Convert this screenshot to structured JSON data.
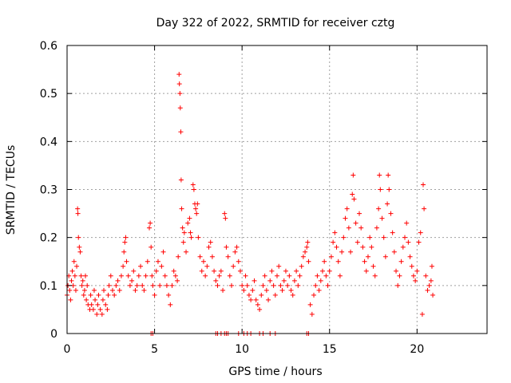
{
  "chart_data": {
    "type": "scatter",
    "title": "Day 322 of 2022, SRMTID for receiver cztg",
    "xlabel": "GPS time / hours",
    "ylabel": "SRMTID / TECUs",
    "xlim": [
      0,
      24
    ],
    "ylim": [
      0,
      0.6
    ],
    "xticks": [
      0,
      5,
      10,
      15,
      20
    ],
    "xtick_labels": [
      "0",
      "5",
      "10",
      "15",
      "20"
    ],
    "yticks": [
      0,
      0.1,
      0.2,
      0.3,
      0.4,
      0.5,
      0.6
    ],
    "ytick_labels": [
      "0",
      "0.1",
      "0.2",
      "0.3",
      "0.4",
      "0.5",
      "0.6"
    ],
    "grid": true,
    "marker": "+",
    "series": [
      {
        "name": "SRMTID",
        "color": "#ff0000",
        "points": [
          [
            0.0,
            0.08
          ],
          [
            0.05,
            0.1
          ],
          [
            0.1,
            0.12
          ],
          [
            0.15,
            0.09
          ],
          [
            0.2,
            0.07
          ],
          [
            0.25,
            0.11
          ],
          [
            0.3,
            0.13
          ],
          [
            0.35,
            0.1
          ],
          [
            0.4,
            0.15
          ],
          [
            0.45,
            0.12
          ],
          [
            0.5,
            0.09
          ],
          [
            0.55,
            0.14
          ],
          [
            0.6,
            0.26
          ],
          [
            0.62,
            0.25
          ],
          [
            0.65,
            0.2
          ],
          [
            0.7,
            0.18
          ],
          [
            0.75,
            0.17
          ],
          [
            0.8,
            0.12
          ],
          [
            0.85,
            0.1
          ],
          [
            0.9,
            0.11
          ],
          [
            0.95,
            0.08
          ],
          [
            1.0,
            0.09
          ],
          [
            1.05,
            0.12
          ],
          [
            1.1,
            0.07
          ],
          [
            1.15,
            0.1
          ],
          [
            1.2,
            0.06
          ],
          [
            1.3,
            0.05
          ],
          [
            1.35,
            0.08
          ],
          [
            1.4,
            0.06
          ],
          [
            1.5,
            0.05
          ],
          [
            1.55,
            0.09
          ],
          [
            1.6,
            0.07
          ],
          [
            1.7,
            0.04
          ],
          [
            1.75,
            0.06
          ],
          [
            1.8,
            0.08
          ],
          [
            1.9,
            0.05
          ],
          [
            2.0,
            0.04
          ],
          [
            2.05,
            0.07
          ],
          [
            2.1,
            0.09
          ],
          [
            2.2,
            0.06
          ],
          [
            2.3,
            0.05
          ],
          [
            2.35,
            0.08
          ],
          [
            2.4,
            0.1
          ],
          [
            2.5,
            0.12
          ],
          [
            2.6,
            0.09
          ],
          [
            2.7,
            0.08
          ],
          [
            2.8,
            0.1
          ],
          [
            2.9,
            0.11
          ],
          [
            3.0,
            0.09
          ],
          [
            3.1,
            0.12
          ],
          [
            3.2,
            0.14
          ],
          [
            3.25,
            0.17
          ],
          [
            3.3,
            0.19
          ],
          [
            3.35,
            0.2
          ],
          [
            3.4,
            0.15
          ],
          [
            3.5,
            0.12
          ],
          [
            3.6,
            0.1
          ],
          [
            3.7,
            0.11
          ],
          [
            3.8,
            0.13
          ],
          [
            3.9,
            0.09
          ],
          [
            4.0,
            0.1
          ],
          [
            4.1,
            0.12
          ],
          [
            4.2,
            0.14
          ],
          [
            4.3,
            0.1
          ],
          [
            4.4,
            0.09
          ],
          [
            4.5,
            0.12
          ],
          [
            4.6,
            0.15
          ],
          [
            4.7,
            0.22
          ],
          [
            4.75,
            0.23
          ],
          [
            4.8,
            0.18
          ],
          [
            4.85,
            0.12
          ],
          [
            4.9,
            0.1
          ],
          [
            5.0,
            0.08
          ],
          [
            5.1,
            0.13
          ],
          [
            5.2,
            0.15
          ],
          [
            5.3,
            0.1
          ],
          [
            5.4,
            0.14
          ],
          [
            5.5,
            0.17
          ],
          [
            5.6,
            0.12
          ],
          [
            5.7,
            0.1
          ],
          [
            5.8,
            0.08
          ],
          [
            5.9,
            0.06
          ],
          [
            6.0,
            0.1
          ],
          [
            6.1,
            0.13
          ],
          [
            6.2,
            0.12
          ],
          [
            6.3,
            0.11
          ],
          [
            6.35,
            0.16
          ],
          [
            6.4,
            0.54
          ],
          [
            6.42,
            0.52
          ],
          [
            6.45,
            0.5
          ],
          [
            6.47,
            0.47
          ],
          [
            6.5,
            0.42
          ],
          [
            6.52,
            0.32
          ],
          [
            6.55,
            0.26
          ],
          [
            6.6,
            0.22
          ],
          [
            6.65,
            0.19
          ],
          [
            6.7,
            0.21
          ],
          [
            6.8,
            0.17
          ],
          [
            6.9,
            0.23
          ],
          [
            7.0,
            0.24
          ],
          [
            7.05,
            0.21
          ],
          [
            7.1,
            0.2
          ],
          [
            7.2,
            0.31
          ],
          [
            7.25,
            0.3
          ],
          [
            7.3,
            0.27
          ],
          [
            7.35,
            0.26
          ],
          [
            7.4,
            0.25
          ],
          [
            7.45,
            0.27
          ],
          [
            7.5,
            0.2
          ],
          [
            7.6,
            0.16
          ],
          [
            7.7,
            0.13
          ],
          [
            7.8,
            0.15
          ],
          [
            7.9,
            0.12
          ],
          [
            8.0,
            0.14
          ],
          [
            8.1,
            0.18
          ],
          [
            8.2,
            0.19
          ],
          [
            8.3,
            0.16
          ],
          [
            8.4,
            0.13
          ],
          [
            8.5,
            0.11
          ],
          [
            8.6,
            0.1
          ],
          [
            8.7,
            0.12
          ],
          [
            8.8,
            0.13
          ],
          [
            8.9,
            0.09
          ],
          [
            9.0,
            0.25
          ],
          [
            9.05,
            0.24
          ],
          [
            9.1,
            0.18
          ],
          [
            9.2,
            0.16
          ],
          [
            9.3,
            0.12
          ],
          [
            9.4,
            0.1
          ],
          [
            9.5,
            0.14
          ],
          [
            9.6,
            0.17
          ],
          [
            9.7,
            0.18
          ],
          [
            9.8,
            0.15
          ],
          [
            9.9,
            0.13
          ],
          [
            10.0,
            0.1
          ],
          [
            10.1,
            0.09
          ],
          [
            10.2,
            0.12
          ],
          [
            10.3,
            0.1
          ],
          [
            10.4,
            0.08
          ],
          [
            10.5,
            0.07
          ],
          [
            10.6,
            0.09
          ],
          [
            10.7,
            0.11
          ],
          [
            10.8,
            0.07
          ],
          [
            10.9,
            0.06
          ],
          [
            11.0,
            0.05
          ],
          [
            11.1,
            0.08
          ],
          [
            11.2,
            0.1
          ],
          [
            11.3,
            0.12
          ],
          [
            11.4,
            0.09
          ],
          [
            11.5,
            0.07
          ],
          [
            11.6,
            0.11
          ],
          [
            11.7,
            0.13
          ],
          [
            11.8,
            0.1
          ],
          [
            11.9,
            0.08
          ],
          [
            12.0,
            0.12
          ],
          [
            12.1,
            0.14
          ],
          [
            12.2,
            0.1
          ],
          [
            12.3,
            0.09
          ],
          [
            12.4,
            0.11
          ],
          [
            12.5,
            0.13
          ],
          [
            12.6,
            0.1
          ],
          [
            12.7,
            0.12
          ],
          [
            12.8,
            0.09
          ],
          [
            12.9,
            0.08
          ],
          [
            13.0,
            0.11
          ],
          [
            13.1,
            0.13
          ],
          [
            13.2,
            0.1
          ],
          [
            13.3,
            0.12
          ],
          [
            13.4,
            0.14
          ],
          [
            13.5,
            0.16
          ],
          [
            13.6,
            0.17
          ],
          [
            13.7,
            0.18
          ],
          [
            13.75,
            0.19
          ],
          [
            13.8,
            0.15
          ],
          [
            13.9,
            0.06
          ],
          [
            14.0,
            0.04
          ],
          [
            14.1,
            0.08
          ],
          [
            14.2,
            0.1
          ],
          [
            14.3,
            0.12
          ],
          [
            14.4,
            0.09
          ],
          [
            14.5,
            0.11
          ],
          [
            14.6,
            0.13
          ],
          [
            14.7,
            0.15
          ],
          [
            14.8,
            0.12
          ],
          [
            14.9,
            0.1
          ],
          [
            15.0,
            0.13
          ],
          [
            15.1,
            0.16
          ],
          [
            15.2,
            0.19
          ],
          [
            15.3,
            0.21
          ],
          [
            15.4,
            0.18
          ],
          [
            15.5,
            0.15
          ],
          [
            15.6,
            0.12
          ],
          [
            15.7,
            0.17
          ],
          [
            15.8,
            0.2
          ],
          [
            15.9,
            0.24
          ],
          [
            16.0,
            0.26
          ],
          [
            16.1,
            0.22
          ],
          [
            16.2,
            0.17
          ],
          [
            16.3,
            0.29
          ],
          [
            16.35,
            0.33
          ],
          [
            16.4,
            0.28
          ],
          [
            16.5,
            0.23
          ],
          [
            16.6,
            0.19
          ],
          [
            16.7,
            0.25
          ],
          [
            16.8,
            0.22
          ],
          [
            16.9,
            0.18
          ],
          [
            17.0,
            0.15
          ],
          [
            17.1,
            0.13
          ],
          [
            17.2,
            0.16
          ],
          [
            17.3,
            0.2
          ],
          [
            17.4,
            0.18
          ],
          [
            17.5,
            0.14
          ],
          [
            17.6,
            0.12
          ],
          [
            17.7,
            0.22
          ],
          [
            17.8,
            0.26
          ],
          [
            17.85,
            0.33
          ],
          [
            17.9,
            0.3
          ],
          [
            18.0,
            0.24
          ],
          [
            18.1,
            0.2
          ],
          [
            18.2,
            0.16
          ],
          [
            18.3,
            0.27
          ],
          [
            18.35,
            0.33
          ],
          [
            18.4,
            0.3
          ],
          [
            18.5,
            0.25
          ],
          [
            18.6,
            0.21
          ],
          [
            18.7,
            0.17
          ],
          [
            18.8,
            0.13
          ],
          [
            18.9,
            0.1
          ],
          [
            19.0,
            0.12
          ],
          [
            19.1,
            0.15
          ],
          [
            19.2,
            0.18
          ],
          [
            19.3,
            0.2
          ],
          [
            19.4,
            0.23
          ],
          [
            19.5,
            0.19
          ],
          [
            19.6,
            0.16
          ],
          [
            19.7,
            0.14
          ],
          [
            19.8,
            0.12
          ],
          [
            19.9,
            0.11
          ],
          [
            20.0,
            0.13
          ],
          [
            20.1,
            0.19
          ],
          [
            20.2,
            0.21
          ],
          [
            20.3,
            0.04
          ],
          [
            20.35,
            0.31
          ],
          [
            20.4,
            0.26
          ],
          [
            20.5,
            0.12
          ],
          [
            20.6,
            0.09
          ],
          [
            20.7,
            0.1
          ],
          [
            20.8,
            0.11
          ],
          [
            20.85,
            0.14
          ],
          [
            20.9,
            0.08
          ],
          [
            8.5,
            0.0
          ],
          [
            8.6,
            0.0
          ],
          [
            8.8,
            0.0
          ],
          [
            9.0,
            0.0
          ],
          [
            9.1,
            0.0
          ],
          [
            9.2,
            0.0
          ],
          [
            9.8,
            0.0
          ],
          [
            10.1,
            0.0
          ],
          [
            10.3,
            0.0
          ],
          [
            10.5,
            0.0
          ],
          [
            11.0,
            0.0
          ],
          [
            11.2,
            0.0
          ],
          [
            11.6,
            0.0
          ],
          [
            11.9,
            0.0
          ],
          [
            13.7,
            0.0
          ],
          [
            13.8,
            0.0
          ],
          [
            4.8,
            0.0
          ],
          [
            4.9,
            0.0
          ]
        ]
      }
    ]
  }
}
